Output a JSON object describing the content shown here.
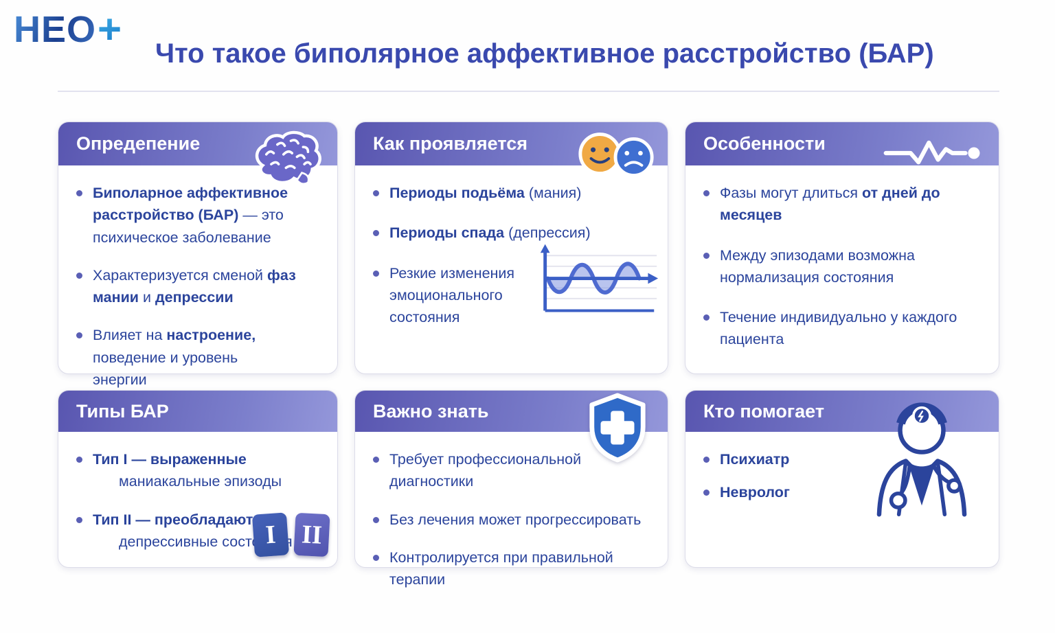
{
  "logo": {
    "text": "НЕО",
    "plus": "+"
  },
  "page": {
    "title": "Что такое биполярное аффективное расстройство (БАР)"
  },
  "colors": {
    "title_text": "#3a49ae",
    "body_text": "#2b449c",
    "header_gradient_start": "#5956b0",
    "header_gradient_end": "#9497da",
    "bullet_dot": "#5a5fb5",
    "brain_icon": "#6a67c8",
    "happy_face": "#f0a944",
    "sad_face": "#3f6fd1",
    "shield": "#2f6ac8",
    "type_badge_1": "#3c55aa",
    "type_badge_2": "#5e60bb",
    "logo_blue": "#2f62b8",
    "logo_plus": "#2f9fe0"
  },
  "cards": [
    {
      "title": "Опредепение",
      "icon": "brain-icon",
      "bullets": [
        {
          "parts": [
            {
              "text": "Биполарное аффективное расстройство (БАР)",
              "bold": true
            },
            {
              "text": " — это психическое заболевание",
              "bold": false
            }
          ]
        },
        {
          "parts": [
            {
              "text": "Характеризуется сменой ",
              "bold": false
            },
            {
              "text": "фаз мании",
              "bold": true
            },
            {
              "text": " и ",
              "bold": false
            },
            {
              "text": "депрессии",
              "bold": true
            }
          ]
        },
        {
          "parts": [
            {
              "text": "Влияет на ",
              "bold": false
            },
            {
              "text": "настроение,",
              "bold": true
            },
            {
              "text": " поведение и уровень энергии",
              "bold": false
            }
          ]
        }
      ]
    },
    {
      "title": "Как проявляется",
      "icon": "mood-faces-icon",
      "bullets": [
        {
          "parts": [
            {
              "text": "Периоды подьёма ",
              "bold": true
            },
            {
              "text": "(мания)",
              "bold": false
            }
          ]
        },
        {
          "parts": [
            {
              "text": "Периоды спада ",
              "bold": true
            },
            {
              "text": "(депрессия)",
              "bold": false
            }
          ]
        },
        {
          "parts": [
            {
              "text": "Резкие изменения эмоционального состояния",
              "bold": false
            }
          ]
        }
      ]
    },
    {
      "title": "Особенности",
      "icon": "pulse-icon",
      "bullets": [
        {
          "parts": [
            {
              "text": "Фазы могут длиться ",
              "bold": false
            },
            {
              "text": "от дней до месяцев",
              "bold": true
            }
          ]
        },
        {
          "parts": [
            {
              "text": "Между эпизодами возможна нормализация состояния",
              "bold": false
            }
          ]
        },
        {
          "parts": [
            {
              "text": "Течение индивидуально у каждого пациента",
              "bold": false
            }
          ]
        }
      ]
    },
    {
      "title": "Типы БАР",
      "icon": "type-badges-icon",
      "badges": [
        "I",
        "II"
      ],
      "bullets": [
        {
          "parts": [
            {
              "text": "Тип I — выраженные",
              "bold": true
            }
          ],
          "line2": "маниакальные эпизоды"
        },
        {
          "parts": [
            {
              "text": "Тип II — преобладают",
              "bold": true
            }
          ],
          "line2": "депрессивные состояния"
        }
      ]
    },
    {
      "title": "Важно знать",
      "icon": "shield-cross-icon",
      "bullets": [
        {
          "parts": [
            {
              "text": "Требует профессиональной диагностики",
              "bold": false
            }
          ]
        },
        {
          "parts": [
            {
              "text": "Без лечения может прогрессировать",
              "bold": false
            }
          ]
        },
        {
          "parts": [
            {
              "text": "Контролируется при правильной терапии",
              "bold": false
            }
          ]
        }
      ]
    },
    {
      "title": "Кто помогает",
      "icon": "doctor-icon",
      "bullets": [
        {
          "parts": [
            {
              "text": "Психиатр",
              "bold": true
            }
          ]
        },
        {
          "parts": [
            {
              "text": "Невролог",
              "bold": true
            }
          ]
        }
      ]
    }
  ]
}
